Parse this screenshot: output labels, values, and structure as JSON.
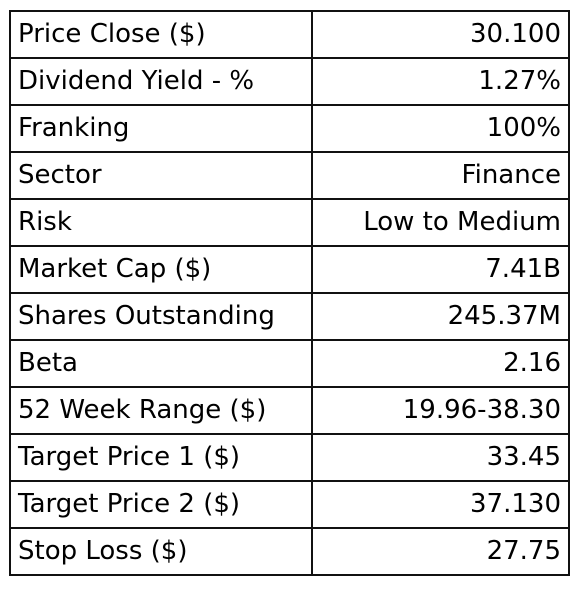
{
  "table": {
    "rows": [
      {
        "label": "Price Close ($)",
        "value": "30.100"
      },
      {
        "label": "Dividend Yield - %",
        "value": "1.27%"
      },
      {
        "label": "Franking",
        "value": "100%"
      },
      {
        "label": "Sector",
        "value": "Finance"
      },
      {
        "label": "Risk",
        "value": "Low to Medium"
      },
      {
        "label": "Market Cap ($)",
        "value": "7.41B"
      },
      {
        "label": "Shares Outstanding",
        "value": "245.37M"
      },
      {
        "label": "Beta",
        "value": "2.16"
      },
      {
        "label": "52 Week Range ($)",
        "value": "19.96-38.30"
      },
      {
        "label": "Target Price 1 ($)",
        "value": "33.45"
      },
      {
        "label": "Target Price 2 ($)",
        "value": "37.130"
      },
      {
        "label": "Stop Loss ($)",
        "value": "27.75"
      }
    ]
  }
}
